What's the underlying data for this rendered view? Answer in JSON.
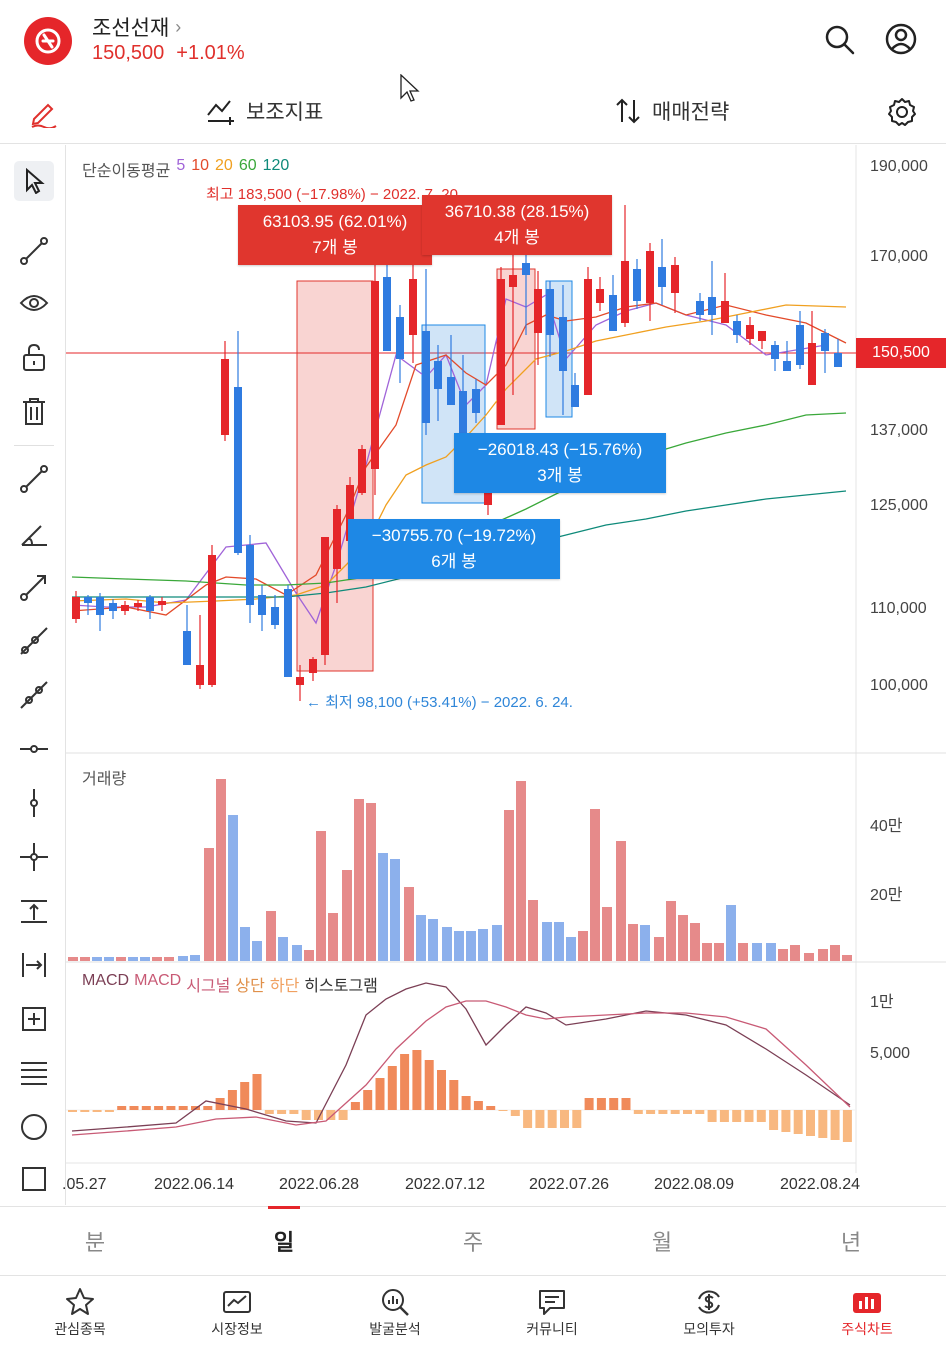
{
  "header": {
    "stock_name": "조선선재",
    "price": "150,500",
    "change": "+1.01%"
  },
  "toolbar": {
    "indicators_label": "보조지표",
    "strategy_label": "매매전략"
  },
  "chart": {
    "sma_legend": {
      "title": "단순이동평균",
      "p5": "5",
      "p10": "10",
      "p20": "20",
      "p60": "60",
      "p120": "120"
    },
    "volume_title": "거래량",
    "macd_legend": {
      "macd": "MACD",
      "macd2": "MACD",
      "signal": "시그널",
      "upper": "상단",
      "lower": "하단",
      "hist": "히스토그램"
    },
    "price_axis": [
      "190,000",
      "170,000",
      "137,000",
      "125,000",
      "110,000",
      "100,000"
    ],
    "volume_axis": [
      "40만",
      "20만"
    ],
    "macd_axis": [
      "1만",
      "5,000"
    ],
    "date_axis": [
      ".05.27",
      "2022.06.14",
      "2022.06.28",
      "2022.07.12",
      "2022.07.26",
      "2022.08.09",
      "2022.08.24"
    ],
    "current_price_tag": "150,500",
    "high_annotation": "최고 183,500 (−17.98%) − 2022. 7. 20.",
    "low_annotation": "← 최저 98,100 (+53.41%) − 2022. 6. 24.",
    "measures": [
      {
        "value": "63103.95 (62.01%)",
        "bars": "7개 봉"
      },
      {
        "value": "36710.38 (28.15%)",
        "bars": "4개 봉"
      },
      {
        "value": "−26018.43 (−15.76%)",
        "bars": "3개 봉"
      },
      {
        "value": "−30755.70 (−19.72%)",
        "bars": "6개 봉"
      }
    ]
  },
  "periods": [
    "분",
    "일",
    "주",
    "월",
    "년"
  ],
  "active_period": "일",
  "bottom_nav": [
    "관심종목",
    "시장정보",
    "발굴분석",
    "커뮤니티",
    "모의투자",
    "주식차트"
  ],
  "active_nav": "주식차트",
  "colors": {
    "accent": "#e5262a",
    "up": "#e5262a",
    "down": "#2f7be0"
  }
}
